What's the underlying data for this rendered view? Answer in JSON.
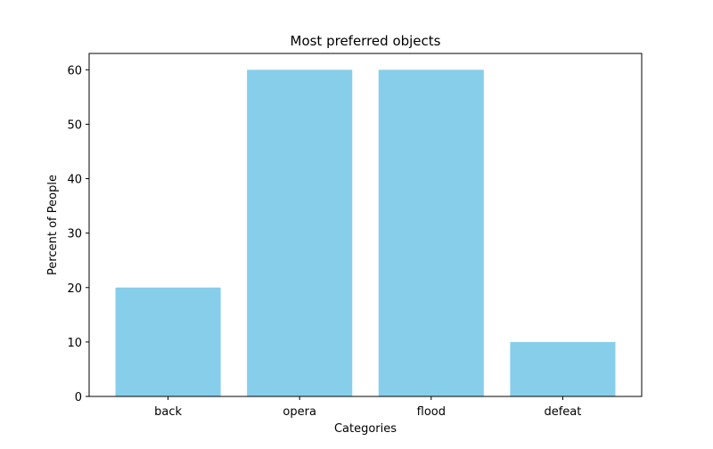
{
  "chart_data": {
    "type": "bar",
    "title": "Most preferred objects",
    "xlabel": "Categories",
    "ylabel": "Percent of People",
    "categories": [
      "back",
      "opera",
      "flood",
      "defeat"
    ],
    "values": [
      20,
      60,
      60,
      10
    ],
    "ylim": [
      0,
      63
    ],
    "yticks": [
      0,
      10,
      20,
      30,
      40,
      50,
      60
    ],
    "bar_color": "#87ceeb",
    "grid": false,
    "legend": false
  }
}
